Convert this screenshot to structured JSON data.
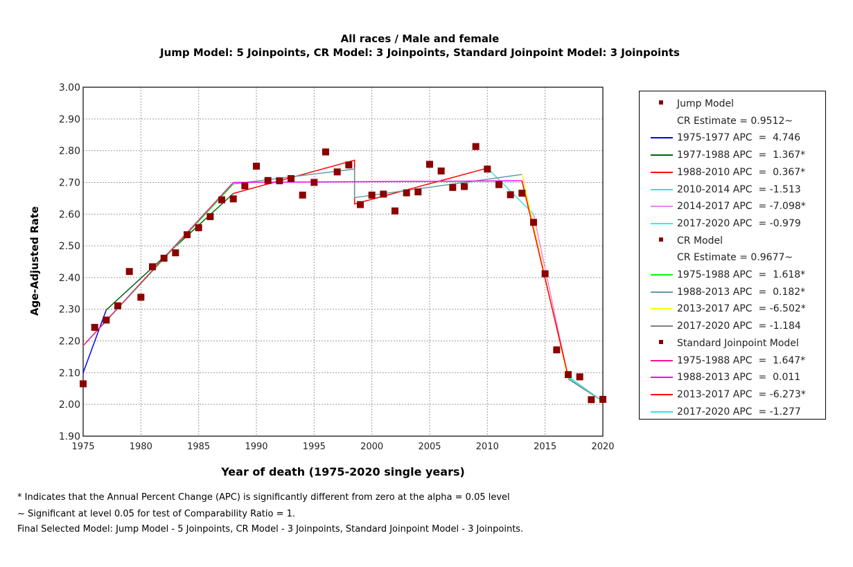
{
  "titles": {
    "line1": "All races / Male and female",
    "line2": "Jump Model: 5 Joinpoints, CR Model: 3 Joinpoints, Standard Joinpoint Model: 3 Joinpoints"
  },
  "chart_data": {
    "type": "scatter",
    "title": "All races / Male and female",
    "xlabel": "Year of death (1975-2020 single years)",
    "ylabel": "Age-Adjusted Rate",
    "xlim": [
      1975,
      2020
    ],
    "ylim": [
      1.9,
      3.0
    ],
    "xticks": [
      "1975",
      "1980",
      "1985",
      "1990",
      "1995",
      "2000",
      "2005",
      "2010",
      "2015",
      "2020"
    ],
    "yticks": [
      "1.90",
      "2.00",
      "2.10",
      "2.20",
      "2.30",
      "2.40",
      "2.50",
      "2.60",
      "2.70",
      "2.80",
      "2.90",
      "3.00"
    ],
    "grid": true,
    "legend_position": "right",
    "observed": {
      "color": "#8b0000",
      "x": [
        1975,
        1976,
        1977,
        1978,
        1979,
        1980,
        1981,
        1982,
        1983,
        1984,
        1985,
        1986,
        1987,
        1988,
        1989,
        1990,
        1991,
        1992,
        1993,
        1994,
        1995,
        1996,
        1997,
        1998,
        1999,
        2000,
        2001,
        2002,
        2003,
        2004,
        2005,
        2006,
        2007,
        2008,
        2009,
        2010,
        2011,
        2012,
        2013,
        2014,
        2015,
        2016,
        2017,
        2018,
        2019,
        2020
      ],
      "y": [
        2.065,
        2.243,
        2.266,
        2.311,
        2.419,
        2.338,
        2.434,
        2.461,
        2.478,
        2.535,
        2.557,
        2.592,
        2.645,
        2.648,
        2.689,
        2.751,
        2.706,
        2.705,
        2.712,
        2.66,
        2.7,
        2.796,
        2.733,
        2.755,
        2.63,
        2.66,
        2.663,
        2.61,
        2.667,
        2.67,
        2.757,
        2.736,
        2.684,
        2.687,
        2.813,
        2.742,
        2.693,
        2.661,
        2.666,
        2.574,
        2.412,
        2.172,
        2.094,
        2.087,
        2.015,
        2.016
      ]
    },
    "series": [
      {
        "model": "Jump Model",
        "label": "1975-1977 APC  =  4.746",
        "color": "#0000ff",
        "x": [
          1975,
          1977
        ],
        "y": [
          2.1,
          2.298
        ]
      },
      {
        "model": "Jump Model",
        "label": "1977-1988 APC  =  1.367*",
        "color": "#006400",
        "x": [
          1977,
          1988
        ],
        "y": [
          2.298,
          2.665
        ]
      },
      {
        "model": "Jump Model",
        "label": "1988-2010 APC  =  0.367*",
        "color": "#ff0000",
        "x": [
          1988,
          1998.5,
          1998.5,
          2010
        ],
        "y": [
          2.665,
          2.77,
          2.632,
          2.745
        ]
      },
      {
        "model": "Jump Model",
        "label": "2010-2014 APC  = -1.513",
        "color": "#40e0d0",
        "x": [
          2010,
          2014
        ],
        "y": [
          2.745,
          2.6
        ]
      },
      {
        "model": "Jump Model",
        "label": "2014-2017 APC  = -7.098*",
        "color": "#ee82ee",
        "x": [
          2014,
          2017
        ],
        "y": [
          2.6,
          2.085
        ]
      },
      {
        "model": "Jump Model",
        "label": "2017-2020 APC  = -0.979",
        "color": "#00ffff",
        "x": [
          2017,
          2020
        ],
        "y": [
          2.085,
          2.01
        ]
      },
      {
        "model": "CR Model",
        "label": "1975-1988 APC  =  1.618*",
        "color": "#00ff00",
        "x": [
          1975,
          1988
        ],
        "y": [
          2.185,
          2.695
        ]
      },
      {
        "model": "CR Model",
        "label": "1988-2013 APC  =  0.182*",
        "color": "#5f9ea0",
        "x": [
          1988,
          1998.5,
          1998.5,
          2013
        ],
        "y": [
          2.695,
          2.742,
          2.652,
          2.725
        ]
      },
      {
        "model": "CR Model",
        "label": "2013-2017 APC  = -6.502*",
        "color": "#ffff00",
        "x": [
          2013,
          2017
        ],
        "y": [
          2.725,
          2.08
        ]
      },
      {
        "model": "CR Model",
        "label": "2017-2020 APC  = -1.184",
        "color": "#808080",
        "x": [
          2017,
          2020
        ],
        "y": [
          2.08,
          2.01
        ]
      },
      {
        "model": "Standard Joinpoint Model",
        "label": "1975-1988 APC  =  1.647*",
        "color": "#ff1493",
        "x": [
          1975,
          1988
        ],
        "y": [
          2.185,
          2.7
        ]
      },
      {
        "model": "Standard Joinpoint Model",
        "label": "1988-2013 APC  =  0.011",
        "color": "#ff00ff",
        "x": [
          1988,
          2013
        ],
        "y": [
          2.7,
          2.705
        ]
      },
      {
        "model": "Standard Joinpoint Model",
        "label": "2013-2017 APC  = -6.273*",
        "color": "#ff0000",
        "x": [
          2013,
          2017
        ],
        "y": [
          2.705,
          2.088
        ]
      },
      {
        "model": "Standard Joinpoint Model",
        "label": "2017-2020 APC  = -1.277",
        "color": "#40e0d0",
        "x": [
          2017,
          2020
        ],
        "y": [
          2.088,
          2.01
        ]
      }
    ],
    "legend_headers": [
      {
        "model": "Jump Model",
        "cr": "CR Estimate = 0.9512~"
      },
      {
        "model": "CR Model",
        "cr": "CR Estimate = 0.9677~"
      },
      {
        "model": "Standard Joinpoint Model",
        "cr": ""
      }
    ]
  },
  "footnotes": [
    "* Indicates that the Annual Percent Change (APC) is significantly different from zero at the alpha = 0.05 level",
    "~ Significant at level 0.05 for test of Comparability Ratio = 1.",
    "Final Selected Model: Jump Model - 5 Joinpoints, CR Model - 3 Joinpoints, Standard Joinpoint Model - 3 Joinpoints."
  ]
}
